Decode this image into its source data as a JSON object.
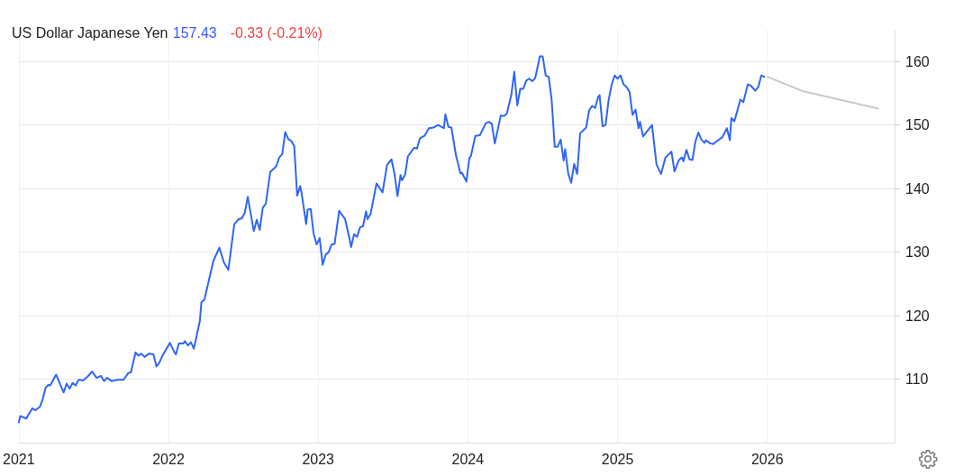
{
  "chart_data": {
    "type": "line",
    "title": "US Dollar Japanese Yen",
    "annotations": [
      "157.43",
      "-0.33 (-0.21%)"
    ],
    "xlim": [
      2021,
      2026.85
    ],
    "xticks": [
      2021,
      2022,
      2023,
      2024,
      2025,
      2026
    ],
    "ylim": [
      100,
      165
    ],
    "yticks": [
      110,
      120,
      130,
      140,
      150,
      160
    ],
    "grid": true,
    "marker": "none",
    "line_style": "solid",
    "series": [
      {
        "color": "#2f66f5",
        "x": [
          2021.0,
          2021.01,
          2021.05,
          2021.09,
          2021.11,
          2021.14,
          2021.16,
          2021.18,
          2021.2,
          2021.21,
          2021.25,
          2021.28,
          2021.3,
          2021.32,
          2021.34,
          2021.36,
          2021.38,
          2021.4,
          2021.43,
          2021.46,
          2021.49,
          2021.52,
          2021.55,
          2021.57,
          2021.59,
          2021.62,
          2021.66,
          2021.7,
          2021.73,
          2021.75,
          2021.78,
          2021.8,
          2021.82,
          2021.84,
          2021.87,
          2021.9,
          2021.92,
          2021.94,
          2021.96,
          2022.01,
          2022.04,
          2022.05,
          2022.07,
          2022.1,
          2022.11,
          2022.13,
          2022.15,
          2022.17,
          2022.21,
          2022.22,
          2022.24,
          2022.3,
          2022.34,
          2022.37,
          2022.4,
          2022.44,
          2022.47,
          2022.49,
          2022.51,
          2022.53,
          2022.57,
          2022.59,
          2022.61,
          2022.63,
          2022.65,
          2022.68,
          2022.72,
          2022.74,
          2022.76,
          2022.78,
          2022.8,
          2022.82,
          2022.84,
          2022.86,
          2022.88,
          2022.89,
          2022.92,
          2022.93,
          2022.95,
          2022.97,
          2022.99,
          2023.01,
          2023.03,
          2023.05,
          2023.07,
          2023.09,
          2023.11,
          2023.14,
          2023.18,
          2023.21,
          2023.22,
          2023.24,
          2023.26,
          2023.28,
          2023.3,
          2023.32,
          2023.33,
          2023.35,
          2023.39,
          2023.43,
          2023.46,
          2023.49,
          2023.51,
          2023.53,
          2023.55,
          2023.56,
          2023.58,
          2023.6,
          2023.64,
          2023.66,
          2023.68,
          2023.71,
          2023.74,
          2023.77,
          2023.8,
          2023.84,
          2023.85,
          2023.87,
          2023.89,
          2023.92,
          2023.95,
          2023.96,
          2023.99,
          2024.01,
          2024.02,
          2024.05,
          2024.08,
          2024.12,
          2024.14,
          2024.16,
          2024.18,
          2024.22,
          2024.24,
          2024.26,
          2024.29,
          2024.31,
          2024.33,
          2024.35,
          2024.37,
          2024.39,
          2024.41,
          2024.43,
          2024.45,
          2024.47,
          2024.48,
          2024.5,
          2024.52,
          2024.54,
          2024.56,
          2024.58,
          2024.6,
          2024.62,
          2024.64,
          2024.65,
          2024.67,
          2024.69,
          2024.71,
          2024.73,
          2024.75,
          2024.79,
          2024.81,
          2024.83,
          2024.85,
          2024.87,
          2024.88,
          2024.9,
          2024.92,
          2024.94,
          2024.96,
          2024.98,
          2025.0,
          2025.02,
          2025.04,
          2025.06,
          2025.08,
          2025.1,
          2025.12,
          2025.14,
          2025.15,
          2025.17,
          2025.23,
          2025.26,
          2025.29,
          2025.32,
          2025.36,
          2025.38,
          2025.41,
          2025.43,
          2025.44,
          2025.46,
          2025.48,
          2025.5,
          2025.52,
          2025.54,
          2025.56,
          2025.58,
          2025.59,
          2025.62,
          2025.64,
          2025.66,
          2025.7,
          2025.73,
          2025.75,
          2025.76,
          2025.78,
          2025.81,
          2025.82,
          2025.84,
          2025.87,
          2025.89,
          2025.92,
          2025.94,
          2025.96,
          2025.98
        ],
        "values": [
          103.2,
          104.2,
          103.8,
          105.4,
          105.1,
          105.6,
          106.8,
          108.7,
          109.1,
          109.0,
          110.7,
          109.0,
          107.9,
          109.3,
          108.5,
          109.4,
          109.0,
          109.9,
          109.8,
          110.4,
          111.2,
          110.2,
          110.5,
          109.7,
          110.2,
          109.7,
          109.9,
          109.9,
          110.9,
          111.1,
          114.2,
          113.7,
          114.0,
          113.5,
          114.0,
          113.9,
          112.0,
          112.6,
          113.7,
          115.7,
          114.2,
          113.9,
          115.6,
          115.6,
          116.0,
          115.3,
          115.8,
          114.8,
          119.2,
          122.1,
          122.5,
          128.6,
          130.7,
          128.4,
          127.2,
          134.4,
          135.2,
          135.3,
          136.2,
          138.7,
          133.3,
          135.1,
          133.5,
          137.0,
          137.6,
          142.6,
          143.5,
          144.9,
          145.4,
          148.9,
          147.8,
          147.5,
          146.7,
          138.9,
          140.4,
          139.2,
          134.4,
          136.7,
          136.8,
          132.9,
          131.2,
          132.2,
          128.0,
          129.6,
          130.0,
          131.2,
          131.3,
          136.5,
          135.2,
          132.0,
          130.8,
          132.8,
          132.4,
          133.9,
          134.1,
          136.4,
          135.2,
          136.0,
          140.8,
          139.4,
          143.7,
          144.6,
          142.3,
          138.8,
          142.1,
          141.3,
          142.1,
          145.1,
          146.4,
          146.3,
          147.9,
          148.3,
          149.5,
          149.6,
          150.0,
          149.5,
          151.7,
          149.7,
          149.6,
          145.3,
          142.4,
          142.5,
          141.1,
          144.8,
          145.1,
          148.3,
          148.4,
          150.3,
          150.5,
          150.2,
          147.1,
          151.5,
          151.4,
          151.8,
          154.7,
          158.4,
          153.1,
          155.7,
          155.7,
          157.0,
          157.3,
          156.9,
          157.4,
          159.6,
          160.8,
          160.8,
          157.8,
          157.6,
          153.9,
          146.6,
          146.6,
          147.7,
          144.4,
          146.2,
          142.4,
          140.9,
          143.9,
          142.3,
          148.7,
          149.6,
          152.3,
          153.0,
          152.7,
          154.4,
          154.7,
          149.8,
          150.0,
          153.9,
          156.3,
          157.8,
          157.3,
          157.8,
          156.4,
          156.0,
          155.2,
          151.6,
          152.4,
          149.5,
          150.5,
          148.2,
          150.0,
          143.8,
          142.3,
          144.9,
          145.8,
          142.7,
          144.5,
          144.9,
          144.3,
          146.1,
          144.6,
          144.5,
          147.4,
          148.8,
          147.7,
          147.2,
          147.6,
          147.1,
          147.0,
          147.4,
          148.1,
          149.5,
          147.6,
          151.1,
          150.6,
          153.1,
          154.0,
          153.6,
          156.4,
          156.2,
          155.4,
          156.0,
          157.8,
          157.6
        ]
      },
      {
        "color": "#c8c8c8",
        "x": [
          2026.0,
          2026.24,
          2026.74
        ],
        "values": [
          157.6,
          155.3,
          152.6
        ]
      }
    ]
  }
}
